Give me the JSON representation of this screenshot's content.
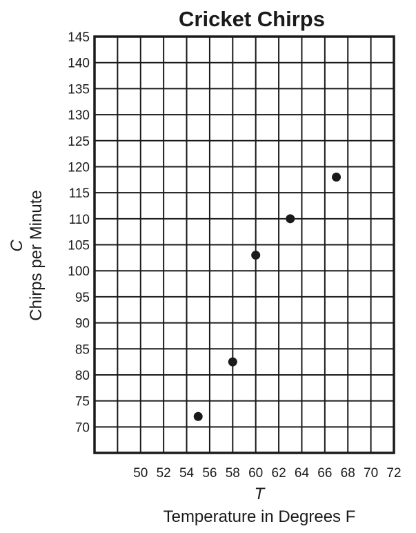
{
  "chart_data": {
    "type": "scatter",
    "title": "Cricket Chirps",
    "xvar": "T",
    "xlabel": "Temperature in Degrees F",
    "yvar": "C",
    "ylabel": "Chirps per Minute",
    "xlim": [
      46,
      72
    ],
    "ylim": [
      65,
      145
    ],
    "x_ticks": [
      50,
      52,
      54,
      56,
      58,
      60,
      62,
      64,
      66,
      68,
      70,
      72
    ],
    "y_ticks": [
      70,
      75,
      80,
      85,
      90,
      95,
      100,
      105,
      110,
      115,
      120,
      125,
      130,
      135,
      140,
      145
    ],
    "grid": true,
    "points": [
      {
        "x": 55,
        "y": 72
      },
      {
        "x": 58,
        "y": 82.5
      },
      {
        "x": 60,
        "y": 103
      },
      {
        "x": 63,
        "y": 110
      },
      {
        "x": 67,
        "y": 118
      }
    ],
    "point_color": "#1a1a1a"
  }
}
